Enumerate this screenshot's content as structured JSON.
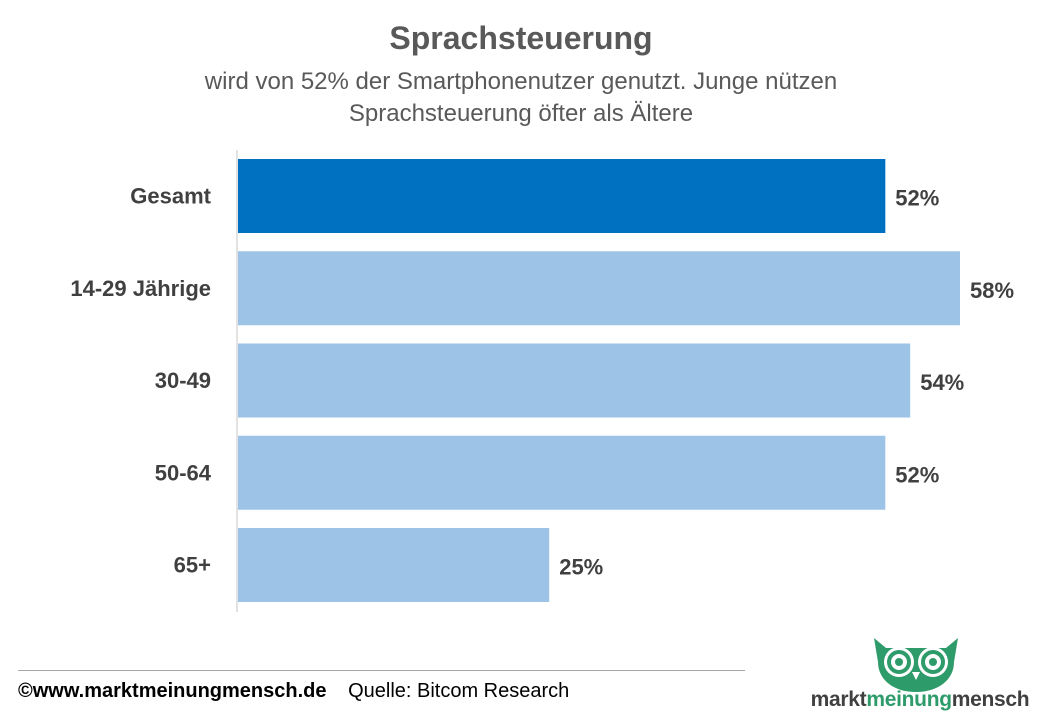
{
  "title": "Sprachsteuerung",
  "subtitle_lines": [
    "wird von 52% der Smartphonenutzer genutzt. Junge nützen",
    "Sprachsteuerung öfter als Ältere"
  ],
  "footer": {
    "copyright": "©www.marktmeinungmensch.de",
    "source": "Quelle: Bitcom Research"
  },
  "logo": {
    "word1": "markt",
    "word2": "meinung",
    "word3": "mensch",
    "icon": "owl-icon"
  },
  "colors": {
    "highlight_bar": "#0070c0",
    "bar": "#9dc3e6",
    "axis": "#d9d9d9",
    "text": "#595959",
    "logo_green": "#2e9b6b"
  },
  "chart_data": {
    "type": "bar",
    "orientation": "horizontal",
    "categories": [
      "Gesamt",
      "14-29 Jährige",
      "30-49",
      "50-64",
      "65+"
    ],
    "values": [
      52,
      58,
      54,
      52,
      25
    ],
    "value_labels": [
      "52%",
      "58%",
      "54%",
      "52%",
      "25%"
    ],
    "unit": "%",
    "highlight_index": 0,
    "xlim": [
      0,
      58
    ],
    "grid": false,
    "legend": "none"
  }
}
